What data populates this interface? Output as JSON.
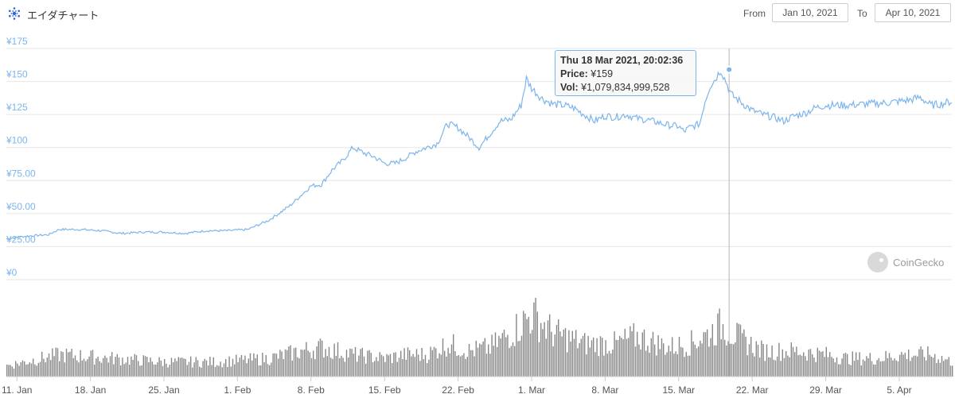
{
  "header": {
    "title": "エイダチャート",
    "from_label": "From",
    "from_value": "Jan 10, 2021",
    "to_label": "To",
    "to_value": "Apr 10, 2021",
    "logo_icon": "cardano-logo-icon"
  },
  "tooltip": {
    "date": "Thu 18 Mar 2021, 20:02:36",
    "price_label": "Price:",
    "price_value": "¥159",
    "vol_label": "Vol:",
    "vol_value": "¥1,079,834,999,528"
  },
  "watermark": "CoinGecko",
  "colors": {
    "price_line": "#7cb5ec",
    "volume": "#5f5f5f",
    "axis_text": "#7cb5ec",
    "grid": "#e6e6e6"
  },
  "chart_data": {
    "type": "line",
    "y_axis_labels": [
      "¥175",
      "¥150",
      "¥125",
      "¥100",
      "¥75.00",
      "¥50.00",
      "¥25.00",
      "¥0"
    ],
    "y_values": [
      175,
      150,
      125,
      100,
      75,
      50,
      25,
      0
    ],
    "ylim": [
      0,
      175
    ],
    "x_axis_labels": [
      "11. Jan",
      "18. Jan",
      "25. Jan",
      "1. Feb",
      "8. Feb",
      "15. Feb",
      "22. Feb",
      "1. Mar",
      "8. Mar",
      "15. Mar",
      "22. Mar",
      "29. Mar",
      "5. Apr"
    ],
    "x_label_days": [
      1,
      8,
      15,
      22,
      29,
      36,
      43,
      50,
      57,
      64,
      71,
      78,
      85
    ],
    "xlim_days": [
      0,
      90
    ],
    "price_series": {
      "name": "Price",
      "days": [
        0,
        2,
        4,
        5,
        7,
        9,
        11,
        13,
        15,
        17,
        19,
        21,
        23,
        25,
        27,
        29,
        30,
        31,
        32,
        33,
        34,
        35,
        36,
        37,
        38,
        39,
        40,
        41,
        42,
        43,
        44,
        45,
        46,
        47,
        48,
        49,
        49.5,
        50,
        51,
        52,
        53,
        54,
        55,
        56,
        57,
        58,
        59,
        60,
        61,
        62,
        63,
        64,
        64.5,
        65,
        66,
        66.5,
        67,
        67.5,
        68,
        68.5,
        69,
        70,
        71,
        72,
        73,
        74,
        75,
        76,
        77,
        78,
        80,
        82,
        84,
        85,
        86,
        87,
        88,
        89,
        90
      ],
      "values": [
        31,
        33,
        34,
        38,
        38,
        37,
        35,
        36,
        36,
        35,
        37,
        37,
        38,
        45,
        56,
        71,
        72,
        83,
        90,
        100,
        96,
        93,
        88,
        88,
        92,
        97,
        100,
        103,
        118,
        115,
        108,
        100,
        110,
        120,
        121,
        132,
        152,
        145,
        137,
        133,
        132,
        130,
        125,
        120,
        124,
        123,
        125,
        122,
        121,
        119,
        117,
        116,
        112,
        115,
        118,
        135,
        147,
        152,
        159,
        150,
        140,
        134,
        128,
        125,
        123,
        120,
        124,
        126,
        130,
        132,
        132,
        133,
        134,
        135,
        136,
        138,
        132,
        133,
        135
      ]
    },
    "volume_series": {
      "name": "Volume",
      "days": [
        0,
        5,
        10,
        15,
        20,
        25,
        28,
        30,
        33,
        36,
        38,
        40,
        42,
        44,
        46,
        48,
        50,
        52,
        55,
        58,
        60,
        63,
        65,
        67,
        68,
        70,
        72,
        75,
        78,
        80,
        83,
        85,
        88,
        90
      ],
      "values": [
        3,
        6,
        5,
        4,
        4,
        5,
        7,
        8,
        6,
        5,
        6,
        6,
        9,
        7,
        8,
        12,
        17,
        12,
        9,
        9,
        11,
        8,
        9,
        12,
        14,
        10,
        7,
        7,
        6,
        5,
        5,
        6,
        6,
        4
      ]
    }
  }
}
